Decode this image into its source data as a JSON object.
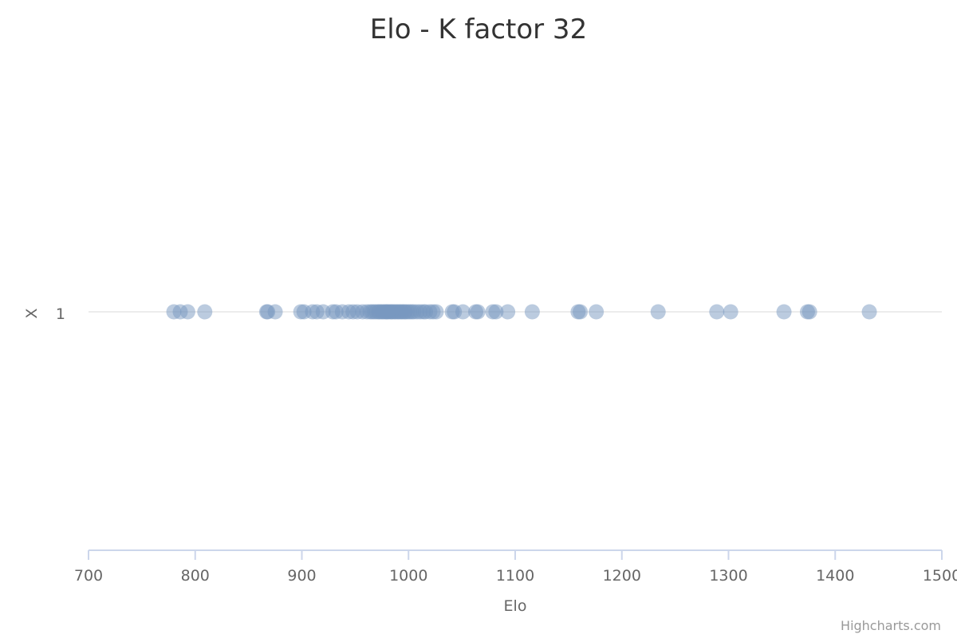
{
  "chart_data": {
    "type": "scatter",
    "title": "Elo - K factor 32",
    "xlabel": "Elo",
    "ylabel": "X",
    "xlim": [
      700,
      1500
    ],
    "x_ticks": [
      "700",
      "800",
      "900",
      "1000",
      "1100",
      "1200",
      "1300",
      "1400",
      "1500"
    ],
    "y_categories": [
      "1"
    ],
    "grid": true,
    "colors": {
      "point": "#7798BF",
      "grid": "#e6e6e6",
      "axis": "#ccd6eb"
    },
    "series": [
      {
        "values": [
          780,
          786,
          793,
          809,
          867,
          868,
          875,
          899,
          902,
          910,
          914,
          920,
          929,
          932,
          938,
          944,
          948,
          952,
          957,
          961,
          964,
          966,
          968,
          970,
          972,
          973,
          975,
          976,
          978,
          979,
          980,
          981,
          983,
          984,
          985,
          987,
          988,
          990,
          991,
          993,
          994,
          996,
          997,
          999,
          1001,
          1003,
          1005,
          1008,
          1011,
          1014,
          1016,
          1020,
          1023,
          1026,
          1041,
          1043,
          1051,
          1063,
          1065,
          1079,
          1082,
          1093,
          1116,
          1159,
          1161,
          1176,
          1234,
          1289,
          1302,
          1352,
          1374,
          1376,
          1432
        ]
      }
    ]
  },
  "credits": "Highcharts.com"
}
